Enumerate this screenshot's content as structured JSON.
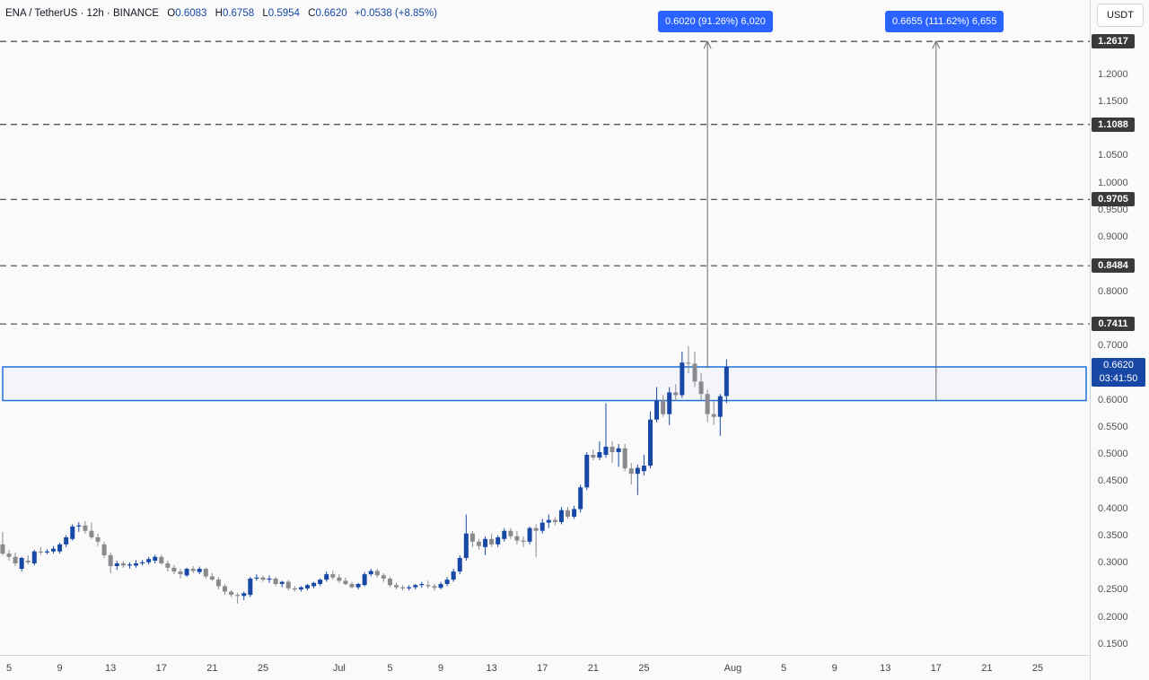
{
  "legend": {
    "symbol": "ENA / TetherUS · 12h · BINANCE",
    "open_label": "O",
    "open": "0.6083",
    "high_label": "H",
    "high": "0.6758",
    "low_label": "L",
    "low": "0.5954",
    "close_label": "C",
    "close": "0.6620",
    "change": "+0.0538 (+8.85%)"
  },
  "currency_button": "USDT",
  "measure_labels": [
    "0.6020 (91.26%) 6,020",
    "0.6655 (111.62%) 6,655"
  ],
  "current_price": {
    "price": "0.6620",
    "countdown": "03:41:50"
  },
  "colors": {
    "up": "#1848a6",
    "down": "#8a8a8e",
    "accent": "#2962ff",
    "level_tag": "#3a3a3a"
  },
  "chart_data": {
    "type": "candlestick",
    "y_axis": {
      "ylim": [
        0.13,
        1.29
      ],
      "tick_labels": [
        "0.1500",
        "0.2000",
        "0.2500",
        "0.3000",
        "0.3500",
        "0.4000",
        "0.4500",
        "0.5000",
        "0.5500",
        "0.6000",
        "0.6500",
        "0.7000",
        "0.8000",
        "0.9000",
        "0.9500",
        "1.0000",
        "1.0500",
        "1.1500",
        "1.2000"
      ],
      "ticks": [
        0.15,
        0.2,
        0.25,
        0.3,
        0.35,
        0.4,
        0.45,
        0.5,
        0.55,
        0.6,
        0.65,
        0.7,
        0.8,
        0.9,
        0.95,
        1.0,
        1.05,
        1.15,
        1.2
      ]
    },
    "x_axis": {
      "tick_labels": [
        "5",
        "9",
        "13",
        "17",
        "21",
        "25",
        "Jul",
        "5",
        "9",
        "13",
        "17",
        "21",
        "25",
        "Aug",
        "5",
        "9",
        "13",
        "17",
        "21",
        "25"
      ],
      "tick_dates": [
        "2024-06-05",
        "2024-06-09",
        "2024-06-13",
        "2024-06-17",
        "2024-06-21",
        "2024-06-25",
        "2024-07-01",
        "2024-07-05",
        "2024-07-09",
        "2024-07-13",
        "2024-07-17",
        "2024-07-21",
        "2024-07-25",
        "2024-08-01",
        "2024-08-05",
        "2024-08-09",
        "2024-08-13",
        "2024-08-17",
        "2024-08-21",
        "2024-08-25"
      ]
    },
    "resistance_levels": [
      "0.7411",
      "0.8484",
      "0.9705",
      "1.1088",
      "1.2617"
    ],
    "zone": {
      "low": 0.6,
      "high": 0.662,
      "start": "2024-06-04",
      "end": "2024-08-30"
    },
    "projections": [
      {
        "date": "2024-07-30",
        "from": 0.66,
        "to": 1.262
      },
      {
        "date": "2024-08-17",
        "from": 0.6,
        "to": 1.262
      }
    ],
    "candles": [
      {
        "t": "2024-06-04T12:00",
        "o": 0.335,
        "h": 0.358,
        "l": 0.315,
        "c": 0.318
      },
      {
        "t": "2024-06-05T00:00",
        "o": 0.318,
        "h": 0.325,
        "l": 0.305,
        "c": 0.312
      },
      {
        "t": "2024-06-05T12:00",
        "o": 0.312,
        "h": 0.32,
        "l": 0.295,
        "c": 0.3
      },
      {
        "t": "2024-06-06T00:00",
        "o": 0.29,
        "h": 0.312,
        "l": 0.285,
        "c": 0.31
      },
      {
        "t": "2024-06-06T12:00",
        "o": 0.305,
        "h": 0.315,
        "l": 0.298,
        "c": 0.302
      },
      {
        "t": "2024-06-07T00:00",
        "o": 0.3,
        "h": 0.325,
        "l": 0.296,
        "c": 0.322
      },
      {
        "t": "2024-06-07T12:00",
        "o": 0.322,
        "h": 0.33,
        "l": 0.316,
        "c": 0.32
      },
      {
        "t": "2024-06-08T00:00",
        "o": 0.32,
        "h": 0.326,
        "l": 0.317,
        "c": 0.322
      },
      {
        "t": "2024-06-08T12:00",
        "o": 0.322,
        "h": 0.332,
        "l": 0.318,
        "c": 0.327
      },
      {
        "t": "2024-06-09T00:00",
        "o": 0.322,
        "h": 0.338,
        "l": 0.318,
        "c": 0.335
      },
      {
        "t": "2024-06-09T12:00",
        "o": 0.335,
        "h": 0.352,
        "l": 0.33,
        "c": 0.348
      },
      {
        "t": "2024-06-10T00:00",
        "o": 0.345,
        "h": 0.372,
        "l": 0.342,
        "c": 0.368
      },
      {
        "t": "2024-06-10T12:00",
        "o": 0.368,
        "h": 0.376,
        "l": 0.358,
        "c": 0.37
      },
      {
        "t": "2024-06-11T00:00",
        "o": 0.37,
        "h": 0.378,
        "l": 0.355,
        "c": 0.36
      },
      {
        "t": "2024-06-11T12:00",
        "o": 0.36,
        "h": 0.375,
        "l": 0.345,
        "c": 0.348
      },
      {
        "t": "2024-06-12T00:00",
        "o": 0.348,
        "h": 0.355,
        "l": 0.332,
        "c": 0.34
      },
      {
        "t": "2024-06-12T12:00",
        "o": 0.335,
        "h": 0.34,
        "l": 0.31,
        "c": 0.315
      },
      {
        "t": "2024-06-13T00:00",
        "o": 0.315,
        "h": 0.32,
        "l": 0.282,
        "c": 0.295
      },
      {
        "t": "2024-06-13T12:00",
        "o": 0.295,
        "h": 0.305,
        "l": 0.288,
        "c": 0.3
      },
      {
        "t": "2024-06-14T00:00",
        "o": 0.3,
        "h": 0.304,
        "l": 0.292,
        "c": 0.296
      },
      {
        "t": "2024-06-14T12:00",
        "o": 0.296,
        "h": 0.302,
        "l": 0.29,
        "c": 0.298
      },
      {
        "t": "2024-06-15T00:00",
        "o": 0.296,
        "h": 0.306,
        "l": 0.292,
        "c": 0.3
      },
      {
        "t": "2024-06-15T12:00",
        "o": 0.3,
        "h": 0.306,
        "l": 0.296,
        "c": 0.302
      },
      {
        "t": "2024-06-16T00:00",
        "o": 0.302,
        "h": 0.312,
        "l": 0.298,
        "c": 0.308
      },
      {
        "t": "2024-06-16T12:00",
        "o": 0.305,
        "h": 0.316,
        "l": 0.3,
        "c": 0.312
      },
      {
        "t": "2024-06-17T00:00",
        "o": 0.312,
        "h": 0.316,
        "l": 0.298,
        "c": 0.3
      },
      {
        "t": "2024-06-17T12:00",
        "o": 0.3,
        "h": 0.305,
        "l": 0.285,
        "c": 0.292
      },
      {
        "t": "2024-06-18T00:00",
        "o": 0.292,
        "h": 0.297,
        "l": 0.28,
        "c": 0.285
      },
      {
        "t": "2024-06-18T12:00",
        "o": 0.285,
        "h": 0.29,
        "l": 0.272,
        "c": 0.28
      },
      {
        "t": "2024-06-19T00:00",
        "o": 0.278,
        "h": 0.292,
        "l": 0.275,
        "c": 0.29
      },
      {
        "t": "2024-06-19T12:00",
        "o": 0.29,
        "h": 0.295,
        "l": 0.282,
        "c": 0.286
      },
      {
        "t": "2024-06-20T00:00",
        "o": 0.284,
        "h": 0.294,
        "l": 0.28,
        "c": 0.29
      },
      {
        "t": "2024-06-20T12:00",
        "o": 0.29,
        "h": 0.292,
        "l": 0.272,
        "c": 0.276
      },
      {
        "t": "2024-06-21T00:00",
        "o": 0.276,
        "h": 0.282,
        "l": 0.268,
        "c": 0.27
      },
      {
        "t": "2024-06-21T12:00",
        "o": 0.27,
        "h": 0.275,
        "l": 0.252,
        "c": 0.258
      },
      {
        "t": "2024-06-22T00:00",
        "o": 0.258,
        "h": 0.262,
        "l": 0.242,
        "c": 0.248
      },
      {
        "t": "2024-06-22T12:00",
        "o": 0.248,
        "h": 0.25,
        "l": 0.238,
        "c": 0.242
      },
      {
        "t": "2024-06-23T00:00",
        "o": 0.242,
        "h": 0.246,
        "l": 0.226,
        "c": 0.24
      },
      {
        "t": "2024-06-23T12:00",
        "o": 0.24,
        "h": 0.248,
        "l": 0.232,
        "c": 0.245
      },
      {
        "t": "2024-06-24T00:00",
        "o": 0.242,
        "h": 0.275,
        "l": 0.238,
        "c": 0.272
      },
      {
        "t": "2024-06-24T12:00",
        "o": 0.272,
        "h": 0.28,
        "l": 0.268,
        "c": 0.274
      },
      {
        "t": "2024-06-25T00:00",
        "o": 0.274,
        "h": 0.278,
        "l": 0.266,
        "c": 0.27
      },
      {
        "t": "2024-06-25T12:00",
        "o": 0.27,
        "h": 0.278,
        "l": 0.264,
        "c": 0.272
      },
      {
        "t": "2024-06-26T00:00",
        "o": 0.272,
        "h": 0.275,
        "l": 0.258,
        "c": 0.262
      },
      {
        "t": "2024-06-26T12:00",
        "o": 0.262,
        "h": 0.268,
        "l": 0.256,
        "c": 0.266
      },
      {
        "t": "2024-06-27T00:00",
        "o": 0.266,
        "h": 0.27,
        "l": 0.25,
        "c": 0.254
      },
      {
        "t": "2024-06-27T12:00",
        "o": 0.254,
        "h": 0.258,
        "l": 0.248,
        "c": 0.252
      },
      {
        "t": "2024-06-28T00:00",
        "o": 0.252,
        "h": 0.258,
        "l": 0.248,
        "c": 0.256
      },
      {
        "t": "2024-06-28T12:00",
        "o": 0.254,
        "h": 0.262,
        "l": 0.25,
        "c": 0.26
      },
      {
        "t": "2024-06-29T00:00",
        "o": 0.258,
        "h": 0.266,
        "l": 0.254,
        "c": 0.264
      },
      {
        "t": "2024-06-29T12:00",
        "o": 0.262,
        "h": 0.272,
        "l": 0.258,
        "c": 0.27
      },
      {
        "t": "2024-06-30T00:00",
        "o": 0.27,
        "h": 0.285,
        "l": 0.266,
        "c": 0.28
      },
      {
        "t": "2024-06-30T12:00",
        "o": 0.28,
        "h": 0.286,
        "l": 0.27,
        "c": 0.274
      },
      {
        "t": "2024-07-01T00:00",
        "o": 0.274,
        "h": 0.28,
        "l": 0.264,
        "c": 0.268
      },
      {
        "t": "2024-07-01T12:00",
        "o": 0.268,
        "h": 0.274,
        "l": 0.26,
        "c": 0.262
      },
      {
        "t": "2024-07-02T00:00",
        "o": 0.262,
        "h": 0.266,
        "l": 0.254,
        "c": 0.256
      },
      {
        "t": "2024-07-02T12:00",
        "o": 0.256,
        "h": 0.264,
        "l": 0.252,
        "c": 0.262
      },
      {
        "t": "2024-07-03T00:00",
        "o": 0.26,
        "h": 0.284,
        "l": 0.258,
        "c": 0.28
      },
      {
        "t": "2024-07-03T12:00",
        "o": 0.28,
        "h": 0.29,
        "l": 0.276,
        "c": 0.286
      },
      {
        "t": "2024-07-04T00:00",
        "o": 0.286,
        "h": 0.29,
        "l": 0.274,
        "c": 0.278
      },
      {
        "t": "2024-07-04T12:00",
        "o": 0.278,
        "h": 0.282,
        "l": 0.266,
        "c": 0.272
      },
      {
        "t": "2024-07-05T00:00",
        "o": 0.272,
        "h": 0.276,
        "l": 0.256,
        "c": 0.26
      },
      {
        "t": "2024-07-05T12:00",
        "o": 0.26,
        "h": 0.264,
        "l": 0.252,
        "c": 0.256
      },
      {
        "t": "2024-07-06T00:00",
        "o": 0.256,
        "h": 0.26,
        "l": 0.25,
        "c": 0.254
      },
      {
        "t": "2024-07-06T12:00",
        "o": 0.254,
        "h": 0.26,
        "l": 0.25,
        "c": 0.256
      },
      {
        "t": "2024-07-07T00:00",
        "o": 0.256,
        "h": 0.262,
        "l": 0.252,
        "c": 0.26
      },
      {
        "t": "2024-07-07T12:00",
        "o": 0.26,
        "h": 0.266,
        "l": 0.255,
        "c": 0.262
      },
      {
        "t": "2024-07-08T00:00",
        "o": 0.26,
        "h": 0.268,
        "l": 0.254,
        "c": 0.258
      },
      {
        "t": "2024-07-08T12:00",
        "o": 0.258,
        "h": 0.262,
        "l": 0.25,
        "c": 0.255
      },
      {
        "t": "2024-07-09T00:00",
        "o": 0.255,
        "h": 0.266,
        "l": 0.252,
        "c": 0.262
      },
      {
        "t": "2024-07-09T12:00",
        "o": 0.262,
        "h": 0.275,
        "l": 0.258,
        "c": 0.27
      },
      {
        "t": "2024-07-10T00:00",
        "o": 0.27,
        "h": 0.29,
        "l": 0.266,
        "c": 0.285
      },
      {
        "t": "2024-07-10T12:00",
        "o": 0.285,
        "h": 0.315,
        "l": 0.28,
        "c": 0.31
      },
      {
        "t": "2024-07-11T00:00",
        "o": 0.31,
        "h": 0.39,
        "l": 0.305,
        "c": 0.355
      },
      {
        "t": "2024-07-11T12:00",
        "o": 0.355,
        "h": 0.36,
        "l": 0.33,
        "c": 0.34
      },
      {
        "t": "2024-07-12T00:00",
        "o": 0.34,
        "h": 0.345,
        "l": 0.325,
        "c": 0.332
      },
      {
        "t": "2024-07-12T12:00",
        "o": 0.33,
        "h": 0.35,
        "l": 0.315,
        "c": 0.345
      },
      {
        "t": "2024-07-13T00:00",
        "o": 0.345,
        "h": 0.355,
        "l": 0.33,
        "c": 0.335
      },
      {
        "t": "2024-07-13T12:00",
        "o": 0.335,
        "h": 0.352,
        "l": 0.33,
        "c": 0.348
      },
      {
        "t": "2024-07-14T00:00",
        "o": 0.345,
        "h": 0.365,
        "l": 0.34,
        "c": 0.36
      },
      {
        "t": "2024-07-14T12:00",
        "o": 0.36,
        "h": 0.365,
        "l": 0.345,
        "c": 0.35
      },
      {
        "t": "2024-07-15T00:00",
        "o": 0.35,
        "h": 0.36,
        "l": 0.335,
        "c": 0.342
      },
      {
        "t": "2024-07-15T12:00",
        "o": 0.342,
        "h": 0.35,
        "l": 0.33,
        "c": 0.34
      },
      {
        "t": "2024-07-16T00:00",
        "o": 0.34,
        "h": 0.368,
        "l": 0.335,
        "c": 0.365
      },
      {
        "t": "2024-07-16T12:00",
        "o": 0.365,
        "h": 0.372,
        "l": 0.312,
        "c": 0.36
      },
      {
        "t": "2024-07-17T00:00",
        "o": 0.36,
        "h": 0.382,
        "l": 0.355,
        "c": 0.375
      },
      {
        "t": "2024-07-17T12:00",
        "o": 0.375,
        "h": 0.39,
        "l": 0.365,
        "c": 0.38
      },
      {
        "t": "2024-07-18T00:00",
        "o": 0.38,
        "h": 0.385,
        "l": 0.37,
        "c": 0.376
      },
      {
        "t": "2024-07-18T12:00",
        "o": 0.376,
        "h": 0.404,
        "l": 0.372,
        "c": 0.398
      },
      {
        "t": "2024-07-19T00:00",
        "o": 0.398,
        "h": 0.404,
        "l": 0.382,
        "c": 0.386
      },
      {
        "t": "2024-07-19T12:00",
        "o": 0.386,
        "h": 0.406,
        "l": 0.382,
        "c": 0.4
      },
      {
        "t": "2024-07-20T00:00",
        "o": 0.4,
        "h": 0.445,
        "l": 0.394,
        "c": 0.44
      },
      {
        "t": "2024-07-20T12:00",
        "o": 0.44,
        "h": 0.505,
        "l": 0.435,
        "c": 0.5
      },
      {
        "t": "2024-07-21T00:00",
        "o": 0.5,
        "h": 0.51,
        "l": 0.49,
        "c": 0.495
      },
      {
        "t": "2024-07-21T12:00",
        "o": 0.495,
        "h": 0.525,
        "l": 0.49,
        "c": 0.505
      },
      {
        "t": "2024-07-22T00:00",
        "o": 0.5,
        "h": 0.595,
        "l": 0.495,
        "c": 0.515
      },
      {
        "t": "2024-07-22T12:00",
        "o": 0.515,
        "h": 0.525,
        "l": 0.485,
        "c": 0.505
      },
      {
        "t": "2024-07-23T00:00",
        "o": 0.505,
        "h": 0.52,
        "l": 0.478,
        "c": 0.512
      },
      {
        "t": "2024-07-23T12:00",
        "o": 0.512,
        "h": 0.52,
        "l": 0.47,
        "c": 0.475
      },
      {
        "t": "2024-07-24T00:00",
        "o": 0.475,
        "h": 0.485,
        "l": 0.445,
        "c": 0.465
      },
      {
        "t": "2024-07-24T12:00",
        "o": 0.465,
        "h": 0.482,
        "l": 0.426,
        "c": 0.476
      },
      {
        "t": "2024-07-25T00:00",
        "o": 0.47,
        "h": 0.5,
        "l": 0.462,
        "c": 0.48
      },
      {
        "t": "2024-07-25T12:00",
        "o": 0.48,
        "h": 0.58,
        "l": 0.475,
        "c": 0.565
      },
      {
        "t": "2024-07-26T00:00",
        "o": 0.565,
        "h": 0.625,
        "l": 0.56,
        "c": 0.6
      },
      {
        "t": "2024-07-26T12:00",
        "o": 0.6,
        "h": 0.61,
        "l": 0.57,
        "c": 0.575
      },
      {
        "t": "2024-07-27T00:00",
        "o": 0.575,
        "h": 0.625,
        "l": 0.555,
        "c": 0.615
      },
      {
        "t": "2024-07-27T12:00",
        "o": 0.615,
        "h": 0.63,
        "l": 0.6,
        "c": 0.61
      },
      {
        "t": "2024-07-28T00:00",
        "o": 0.61,
        "h": 0.69,
        "l": 0.605,
        "c": 0.67
      },
      {
        "t": "2024-07-28T12:00",
        "o": 0.67,
        "h": 0.7,
        "l": 0.65,
        "c": 0.668
      },
      {
        "t": "2024-07-29T00:00",
        "o": 0.668,
        "h": 0.69,
        "l": 0.625,
        "c": 0.635
      },
      {
        "t": "2024-07-29T12:00",
        "o": 0.635,
        "h": 0.65,
        "l": 0.6,
        "c": 0.612
      },
      {
        "t": "2024-07-30T00:00",
        "o": 0.612,
        "h": 0.62,
        "l": 0.56,
        "c": 0.575
      },
      {
        "t": "2024-07-30T12:00",
        "o": 0.575,
        "h": 0.6,
        "l": 0.555,
        "c": 0.57
      },
      {
        "t": "2024-07-31T00:00",
        "o": 0.57,
        "h": 0.612,
        "l": 0.535,
        "c": 0.608
      },
      {
        "t": "2024-07-31T12:00",
        "o": 0.6083,
        "h": 0.6758,
        "l": 0.5954,
        "c": 0.662
      }
    ]
  }
}
